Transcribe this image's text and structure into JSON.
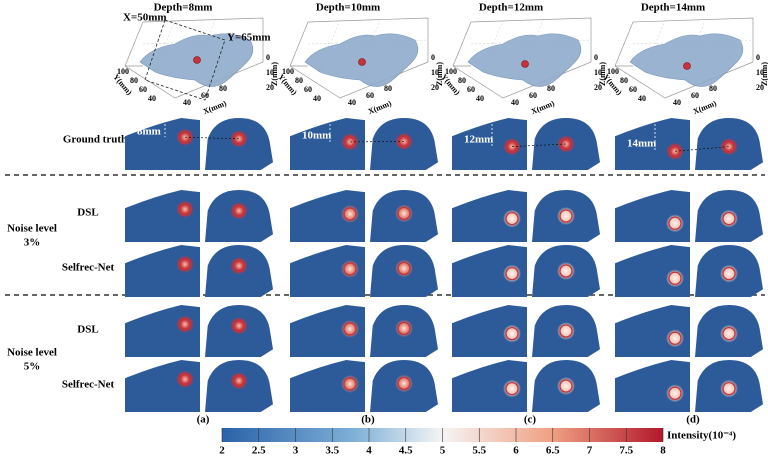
{
  "column_headers": [
    "Depth=8mm",
    "Depth=10mm",
    "Depth=12mm",
    "Depth=14mm"
  ],
  "plot3d": {
    "x_marker": "X=50mm",
    "y_marker": "Y=65mm",
    "x_label": "X(mm)",
    "y_label": "Y(mm)",
    "z_label": "Z(mm)",
    "x_ticks": [
      40,
      60,
      80
    ],
    "y_ticks": [
      100,
      80,
      60,
      40
    ],
    "z_ticks": [
      0,
      10,
      20
    ]
  },
  "depth_labels": [
    "8mm",
    "10mm",
    "12mm",
    "14mm"
  ],
  "rows": {
    "ground_truth": "Ground truth",
    "noise_3": [
      "Noise level",
      "3%"
    ],
    "noise_5": [
      "Noise level",
      "5%"
    ],
    "method_1": "DSL",
    "method_2": "Selfrec-Net"
  },
  "panel_labels": [
    "(a)",
    "(b)",
    "(c)",
    "(d)"
  ],
  "colorbar": {
    "label": "Intensity(10⁻⁴)",
    "range": [
      2,
      8
    ],
    "ticks": [
      2,
      2.5,
      3,
      3.5,
      4,
      4.5,
      5,
      5.5,
      6,
      6.5,
      7,
      7.5,
      8
    ]
  }
}
